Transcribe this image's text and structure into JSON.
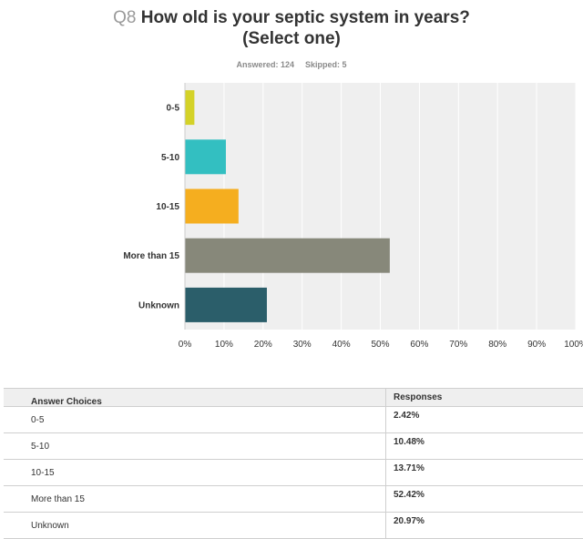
{
  "question": {
    "number": "Q8",
    "title_line1": "How old is your septic system in years?",
    "title_line2": "(Select one)"
  },
  "stats": {
    "answered": "Answered: 124",
    "skipped": "Skipped: 5"
  },
  "chart_data": {
    "type": "bar",
    "orientation": "horizontal",
    "categories": [
      "0-5",
      "5-10",
      "10-15",
      "More than 15",
      "Unknown"
    ],
    "values": [
      2.42,
      10.48,
      13.71,
      52.42,
      20.97
    ],
    "colors": [
      "#d4d228",
      "#33bfc1",
      "#f5ae1f",
      "#87887a",
      "#2b5e6a"
    ],
    "x_ticks": [
      "0%",
      "10%",
      "20%",
      "30%",
      "40%",
      "50%",
      "60%",
      "70%",
      "80%",
      "90%",
      "100%"
    ],
    "xlim": [
      0,
      100
    ],
    "grid": true,
    "background": "#efefef"
  },
  "table": {
    "header_choice": "Answer Choices",
    "header_response": "Responses",
    "rows": [
      {
        "choice": "0-5",
        "response": "2.42%"
      },
      {
        "choice": "5-10",
        "response": "10.48%"
      },
      {
        "choice": "10-15",
        "response": "13.71%"
      },
      {
        "choice": "More than 15",
        "response": "52.42%"
      },
      {
        "choice": "Unknown",
        "response": "20.97%"
      }
    ]
  }
}
